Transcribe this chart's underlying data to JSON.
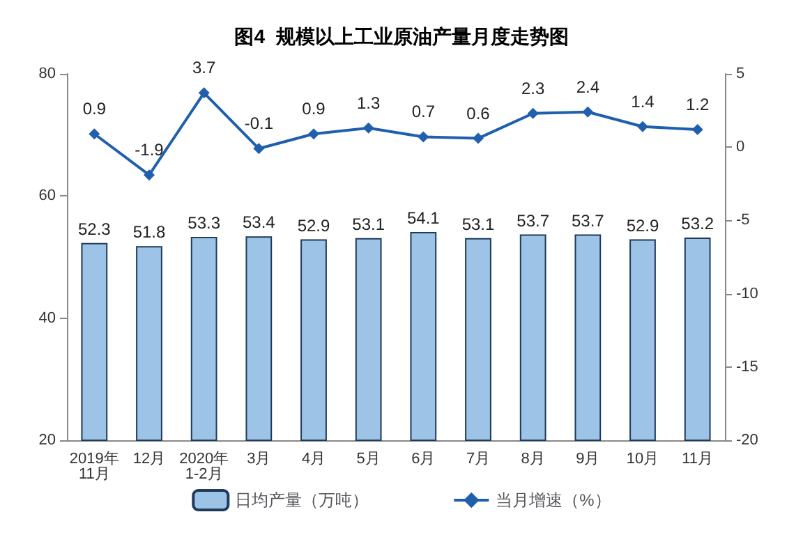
{
  "chart_data": {
    "type": "bar",
    "title": "图4  规模以上工业原油产量月度走势图",
    "categories": [
      "2019年\n11月",
      "12月",
      "2020年\n1-2月",
      "3月",
      "4月",
      "5月",
      "6月",
      "7月",
      "8月",
      "9月",
      "10月",
      "11月"
    ],
    "series": [
      {
        "name": "日均产量（万吨）",
        "color": "#9dc3e6",
        "values": [
          52.3,
          51.8,
          53.3,
          53.4,
          52.9,
          53.1,
          54.1,
          53.1,
          53.7,
          53.7,
          52.9,
          53.2
        ]
      },
      {
        "name": "当月增速（%）",
        "type": "line",
        "axis": "y2",
        "color": "#1f5fad",
        "marker": "diamond",
        "values": [
          0.9,
          -1.9,
          3.7,
          -0.1,
          0.9,
          1.3,
          0.7,
          0.6,
          2.3,
          2.4,
          1.4,
          1.2
        ]
      }
    ],
    "ylim": [
      20,
      80
    ],
    "yticks": [
      20,
      40,
      60,
      80
    ],
    "y2lim": [
      -20,
      5
    ],
    "y2ticks": [
      -20,
      -15,
      -10,
      -5,
      0,
      5
    ],
    "data_labels": true,
    "legend": "bottom",
    "grid": false
  }
}
